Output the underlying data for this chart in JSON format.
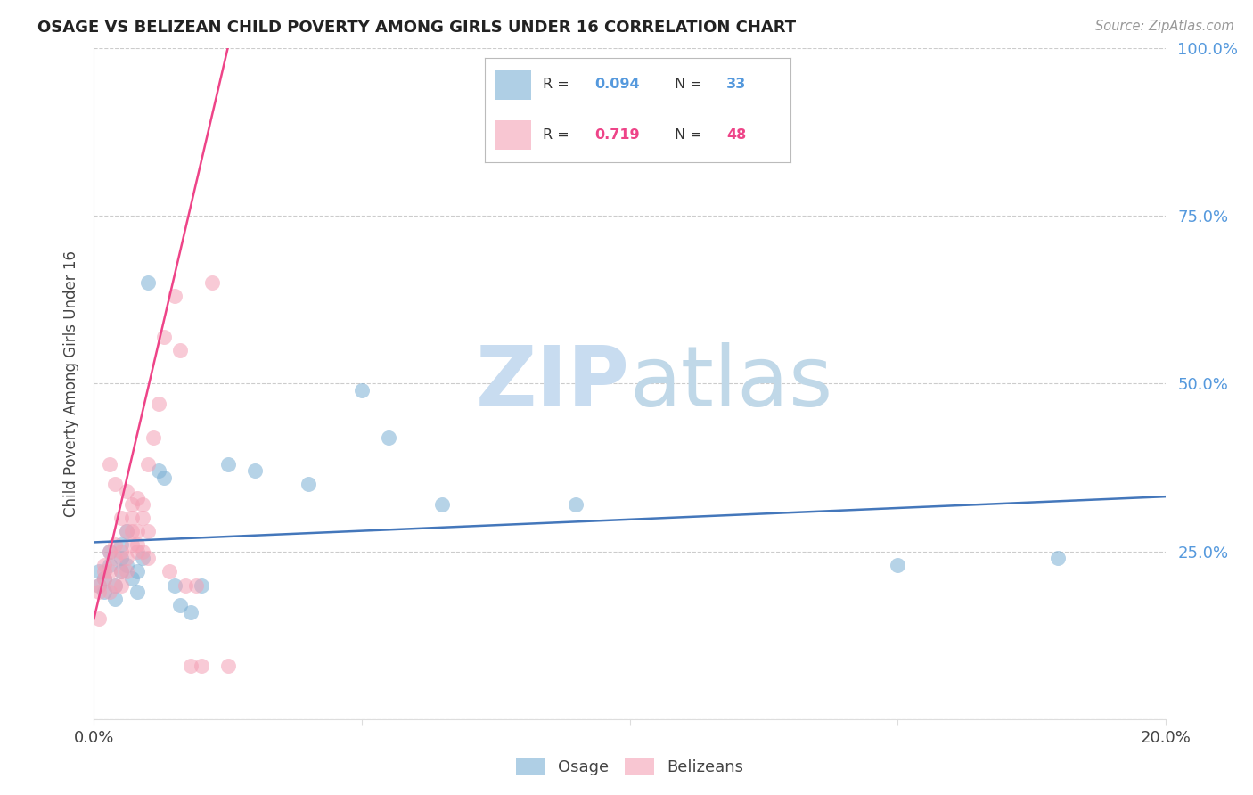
{
  "title": "OSAGE VS BELIZEAN CHILD POVERTY AMONG GIRLS UNDER 16 CORRELATION CHART",
  "source": "Source: ZipAtlas.com",
  "ylabel": "Child Poverty Among Girls Under 16",
  "R_osage": 0.094,
  "N_osage": 33,
  "R_belizean": 0.719,
  "N_belizean": 48,
  "osage_color": "#7BAFD4",
  "belizean_color": "#F4A0B5",
  "trend_osage_color": "#4477BB",
  "trend_belizean_color": "#EE4488",
  "watermark_color": "#D8EAF5",
  "title_color": "#222222",
  "right_tick_color": "#5599DD",
  "x_min": 0.0,
  "x_max": 0.2,
  "y_min": 0.0,
  "y_max": 1.0,
  "x_ticks": [
    0.0,
    0.05,
    0.1,
    0.15,
    0.2
  ],
  "y_ticks": [
    0.0,
    0.25,
    0.5,
    0.75,
    1.0
  ],
  "y_tick_labels": [
    "",
    "25.0%",
    "50.0%",
    "75.0%",
    "100.0%"
  ],
  "legend_osage": "Osage",
  "legend_belizean": "Belizeans",
  "osage_x": [
    0.001,
    0.001,
    0.002,
    0.002,
    0.003,
    0.003,
    0.004,
    0.004,
    0.005,
    0.005,
    0.005,
    0.006,
    0.006,
    0.007,
    0.008,
    0.008,
    0.009,
    0.01,
    0.012,
    0.013,
    0.015,
    0.016,
    0.018,
    0.02,
    0.025,
    0.03,
    0.04,
    0.05,
    0.055,
    0.065,
    0.09,
    0.15,
    0.18
  ],
  "osage_y": [
    0.2,
    0.22,
    0.21,
    0.19,
    0.23,
    0.25,
    0.2,
    0.18,
    0.22,
    0.24,
    0.26,
    0.28,
    0.23,
    0.21,
    0.22,
    0.19,
    0.24,
    0.65,
    0.37,
    0.36,
    0.2,
    0.17,
    0.16,
    0.2,
    0.38,
    0.37,
    0.35,
    0.49,
    0.42,
    0.32,
    0.32,
    0.23,
    0.24
  ],
  "belizean_x": [
    0.001,
    0.001,
    0.001,
    0.002,
    0.002,
    0.002,
    0.003,
    0.003,
    0.003,
    0.003,
    0.004,
    0.004,
    0.004,
    0.004,
    0.005,
    0.005,
    0.005,
    0.005,
    0.006,
    0.006,
    0.006,
    0.006,
    0.007,
    0.007,
    0.007,
    0.007,
    0.008,
    0.008,
    0.008,
    0.008,
    0.009,
    0.009,
    0.009,
    0.01,
    0.01,
    0.01,
    0.011,
    0.012,
    0.013,
    0.014,
    0.015,
    0.016,
    0.017,
    0.018,
    0.019,
    0.02,
    0.022,
    0.025
  ],
  "belizean_y": [
    0.2,
    0.19,
    0.15,
    0.21,
    0.23,
    0.22,
    0.22,
    0.25,
    0.19,
    0.38,
    0.24,
    0.2,
    0.26,
    0.35,
    0.2,
    0.3,
    0.22,
    0.25,
    0.28,
    0.34,
    0.24,
    0.22,
    0.3,
    0.26,
    0.28,
    0.32,
    0.26,
    0.33,
    0.28,
    0.25,
    0.32,
    0.3,
    0.25,
    0.38,
    0.28,
    0.24,
    0.42,
    0.47,
    0.57,
    0.22,
    0.63,
    0.55,
    0.2,
    0.08,
    0.2,
    0.08,
    0.65,
    0.08
  ]
}
